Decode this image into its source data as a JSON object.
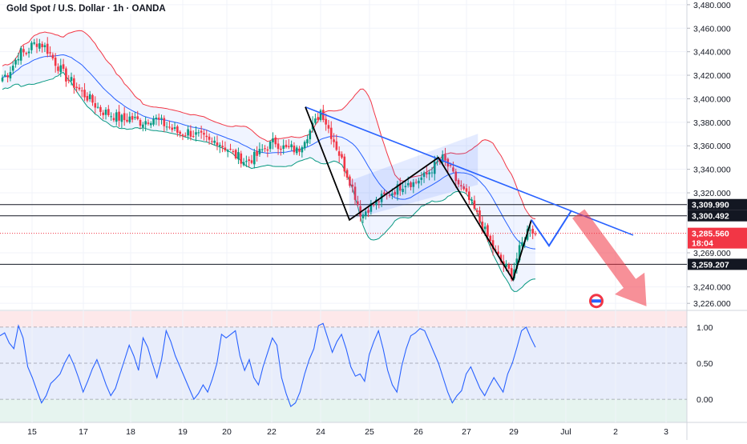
{
  "header": {
    "title": "Gold Spot / U.S. Dollar · 1h · OANDA"
  },
  "chart_data": {
    "type": "candlestick",
    "price_axis": {
      "ticks": [
        "3,480.000",
        "3,460.000",
        "3,440.000",
        "3,420.000",
        "3,400.000",
        "3,380.000",
        "3,360.000",
        "3,340.000",
        "3,320.000",
        "3,269.000",
        "3,240.000",
        "3,226.000"
      ],
      "tick_values": [
        3480,
        3460,
        3440,
        3420,
        3400,
        3380,
        3360,
        3340,
        3320,
        3269,
        3240,
        3226
      ],
      "range": [
        3220,
        3484
      ]
    },
    "oscillator_axis": {
      "ticks": [
        "1.00",
        "0.50",
        "0.00"
      ],
      "tick_values": [
        1,
        0.5,
        0
      ],
      "range": [
        -0.32,
        1.22
      ]
    },
    "time_axis": {
      "labels": [
        "15",
        "17",
        "18",
        "19",
        "20",
        "22",
        "24",
        "25",
        "26",
        "27",
        "29",
        "Jul",
        "2",
        "3"
      ]
    },
    "price_levels": [
      {
        "label": "3,309.990",
        "value": 3309.99,
        "style": "black-line"
      },
      {
        "label": "3,300.492",
        "value": 3300.492,
        "style": "black-line"
      },
      {
        "label": "3,259.207",
        "value": 3259.207,
        "style": "black-line"
      }
    ],
    "last_price": {
      "label": "3,285.560",
      "countdown": "18:04",
      "value": 3285.56,
      "color": "#f23645"
    },
    "colors": {
      "up": "#089981",
      "down": "#f23645",
      "band_upper": "#f23645",
      "band_lower": "#089981",
      "band_mid": "#2962ff",
      "trend": "#2962ff",
      "projection": "#2962ff",
      "zigzag": "#000000",
      "arrow": "#f23645",
      "oscillator": "#2962ff"
    },
    "close_series": [
      3418,
      3422,
      3430,
      3440,
      3438,
      3445,
      3448,
      3446,
      3440,
      3432,
      3425,
      3418,
      3414,
      3409,
      3404,
      3400,
      3395,
      3390,
      3388,
      3386,
      3384,
      3382,
      3384,
      3382,
      3380,
      3382,
      3384,
      3381,
      3378,
      3375,
      3372,
      3370,
      3372,
      3370,
      3368,
      3365,
      3362,
      3365,
      3360,
      3357,
      3352,
      3350,
      3346,
      3349,
      3352,
      3357,
      3360,
      3364,
      3360,
      3357,
      3358,
      3355,
      3366,
      3372,
      3380,
      3391,
      3378,
      3367,
      3355,
      3342,
      3330,
      3316,
      3300,
      3307,
      3310,
      3314,
      3317,
      3320,
      3323,
      3327,
      3330,
      3328,
      3332,
      3334,
      3340,
      3345,
      3349,
      3342,
      3333,
      3325,
      3318,
      3310,
      3300,
      3290,
      3280,
      3270,
      3262,
      3256,
      3250,
      3268,
      3280,
      3292,
      3285
    ],
    "candle_count": 202,
    "osc_series": [
      0.88,
      0.92,
      0.78,
      0.7,
      1.02,
      0.85,
      0.45,
      0.3,
      0.12,
      -0.05,
      0.05,
      0.22,
      0.28,
      0.35,
      0.5,
      0.62,
      0.48,
      0.3,
      0.1,
      0.25,
      0.42,
      0.55,
      0.38,
      0.2,
      0.05,
      0.15,
      0.35,
      0.55,
      0.75,
      0.6,
      0.4,
      0.85,
      0.72,
      0.5,
      0.3,
      0.55,
      0.95,
      0.8,
      0.6,
      0.45,
      0.3,
      0.15,
      0.0,
      0.08,
      0.2,
      0.1,
      0.28,
      0.5,
      0.9,
      0.85,
      0.9,
      0.95,
      0.6,
      0.4,
      0.55,
      0.3,
      0.2,
      0.45,
      0.65,
      0.85,
      0.75,
      0.3,
      0.08,
      -0.1,
      -0.05,
      0.1,
      0.35,
      0.55,
      0.7,
      1.02,
      1.05,
      0.85,
      0.65,
      0.8,
      0.9,
      0.7,
      0.45,
      0.32,
      0.35,
      0.25,
      0.62,
      0.8,
      0.95,
      0.7,
      0.4,
      0.2,
      0.1,
      0.45,
      0.7,
      0.88,
      0.92,
      0.98,
      0.95,
      0.8,
      0.65,
      0.5,
      0.3,
      0.1,
      -0.05,
      0.05,
      0.12,
      0.35,
      0.45,
      0.3,
      0.15,
      0.05,
      0.18,
      0.3,
      0.2,
      0.1,
      0.35,
      0.5,
      0.72,
      0.95,
      1.0,
      0.85,
      0.72
    ],
    "zigzag": [
      [
        3393,
        381
      ],
      [
        3297,
        436
      ],
      [
        3350,
        547
      ],
      [
        3246,
        640
      ],
      [
        3297,
        663
      ]
    ],
    "projection": [
      [
        3297,
        663
      ],
      [
        3275,
        685
      ],
      [
        3305,
        713
      ]
    ],
    "trendline": {
      "from": [
        3393,
        381
      ],
      "to": [
        3284,
        790
      ]
    },
    "channel": {
      "lower_from": [
        3297,
        436
      ],
      "lower_to": [
        3327,
        596
      ],
      "upper_from": [
        3330,
        436
      ],
      "upper_to": [
        3370,
        596
      ]
    }
  }
}
